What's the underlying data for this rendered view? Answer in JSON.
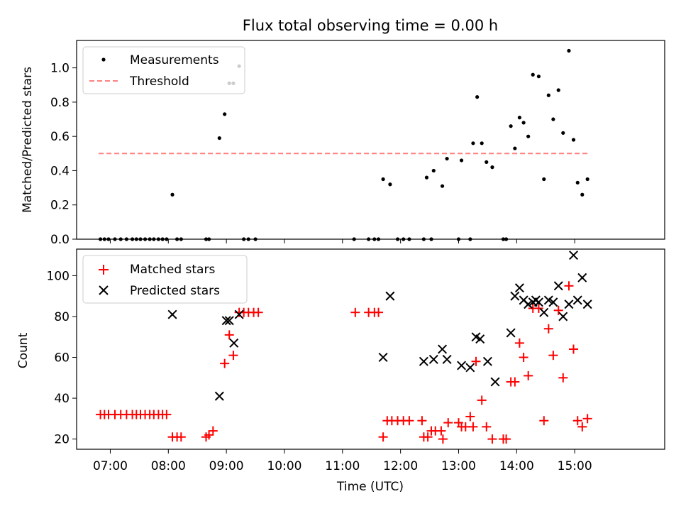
{
  "chart_data": [
    {
      "type": "scatter",
      "title": "Flux total observing time = 0.00 h",
      "xlabel": "",
      "ylabel": "Matched/Predicted stars",
      "xlim": [
        6.42,
        16.55
      ],
      "ylim": [
        0.0,
        1.16
      ],
      "yticks": [
        0.0,
        0.2,
        0.4,
        0.6,
        0.8,
        1.0
      ],
      "ytick_labels": [
        "0.0",
        "0.2",
        "0.4",
        "0.6",
        "0.8",
        "1.0"
      ],
      "xticks": [
        7,
        8,
        9,
        10,
        11,
        12,
        13,
        14,
        15
      ],
      "grid": false,
      "legend_position": "upper-left",
      "legend": [
        {
          "label": "Measurements",
          "marker": "dot",
          "color": "#000000"
        },
        {
          "label": "Threshold",
          "marker": "dashed-line",
          "color": "#ff8080"
        }
      ],
      "threshold": {
        "name": "Threshold",
        "y": 0.5,
        "x_start": 6.8,
        "x_end": 15.25,
        "color": "#ff8080"
      },
      "series": [
        {
          "name": "Measurements",
          "color": "#000000",
          "x": [
            6.83,
            6.9,
            6.97,
            7.08,
            7.18,
            7.28,
            7.38,
            7.45,
            7.52,
            7.6,
            7.68,
            7.75,
            7.83,
            7.9,
            7.97,
            8.07,
            8.15,
            8.22,
            8.65,
            8.7,
            8.88,
            8.97,
            9.05,
            9.12,
            9.22,
            9.3,
            9.38,
            9.5,
            11.2,
            11.45,
            11.55,
            11.62,
            11.7,
            11.82,
            11.95,
            12.05,
            12.15,
            12.4,
            12.45,
            12.53,
            12.57,
            12.72,
            12.8,
            13.0,
            13.05,
            13.2,
            13.25,
            13.32,
            13.4,
            13.48,
            13.58,
            13.77,
            13.82,
            13.9,
            13.97,
            14.05,
            14.12,
            14.2,
            14.28,
            14.38,
            14.47,
            14.55,
            14.63,
            14.72,
            14.8,
            14.9,
            14.98,
            15.05,
            15.13,
            15.22
          ],
          "y": [
            0.0,
            0.0,
            0.0,
            0.0,
            0.0,
            0.0,
            0.0,
            0.0,
            0.0,
            0.0,
            0.0,
            0.0,
            0.0,
            0.0,
            0.0,
            0.26,
            0.0,
            0.0,
            0.0,
            0.0,
            0.59,
            0.73,
            0.91,
            0.91,
            1.01,
            0.0,
            0.0,
            0.0,
            0.0,
            0.0,
            0.0,
            0.0,
            0.35,
            0.32,
            0.0,
            0.0,
            0.0,
            0.0,
            0.36,
            0.0,
            0.4,
            0.31,
            0.47,
            0.0,
            0.46,
            0.0,
            0.56,
            0.83,
            0.56,
            0.45,
            0.42,
            0.0,
            0.0,
            0.66,
            0.53,
            0.71,
            0.68,
            0.6,
            0.96,
            0.95,
            0.35,
            0.84,
            0.7,
            0.87,
            0.62,
            1.1,
            0.58,
            0.33,
            0.26,
            0.35
          ]
        }
      ]
    },
    {
      "type": "scatter",
      "title": "",
      "xlabel": "Time (UTC)",
      "ylabel": "Count",
      "xlim": [
        6.42,
        16.55
      ],
      "ylim": [
        15,
        113
      ],
      "yticks": [
        20,
        40,
        60,
        80,
        100
      ],
      "ytick_labels": [
        "20",
        "40",
        "60",
        "80",
        "100"
      ],
      "xticks": [
        7,
        8,
        9,
        10,
        11,
        12,
        13,
        14,
        15
      ],
      "xtick_labels": [
        "07:00",
        "08:00",
        "09:00",
        "10:00",
        "11:00",
        "12:00",
        "13:00",
        "14:00",
        "15:00"
      ],
      "grid": false,
      "legend_position": "upper-left",
      "legend": [
        {
          "label": "Matched stars",
          "marker": "plus",
          "color": "#ff0000"
        },
        {
          "label": "Predicted stars",
          "marker": "x",
          "color": "#000000"
        }
      ],
      "series": [
        {
          "name": "Matched stars",
          "marker": "plus",
          "color": "#ff0000",
          "x": [
            6.83,
            6.9,
            6.97,
            7.08,
            7.18,
            7.28,
            7.38,
            7.45,
            7.52,
            7.6,
            7.68,
            7.75,
            7.83,
            7.9,
            7.97,
            8.07,
            8.15,
            8.22,
            8.65,
            8.7,
            8.77,
            8.97,
            9.05,
            9.12,
            9.22,
            9.3,
            9.38,
            9.47,
            9.55,
            11.22,
            11.45,
            11.55,
            11.62,
            11.7,
            11.77,
            11.85,
            11.95,
            12.05,
            12.15,
            12.37,
            12.4,
            12.47,
            12.53,
            12.6,
            12.7,
            12.73,
            12.82,
            13.0,
            13.05,
            13.12,
            13.2,
            13.25,
            13.3,
            13.4,
            13.48,
            13.58,
            13.77,
            13.82,
            13.9,
            13.97,
            14.05,
            14.12,
            14.2,
            14.28,
            14.38,
            14.47,
            14.55,
            14.63,
            14.72,
            14.8,
            14.9,
            14.98,
            15.05,
            15.13,
            15.22
          ],
          "y": [
            32,
            32,
            32,
            32,
            32,
            32,
            32,
            32,
            32,
            32,
            32,
            32,
            32,
            32,
            32,
            21,
            21,
            21,
            21,
            22,
            24,
            57,
            71,
            61,
            82,
            82,
            82,
            82,
            82,
            82,
            82,
            82,
            82,
            21,
            29,
            29,
            29,
            29,
            29,
            29,
            21,
            21,
            24,
            24,
            24,
            20,
            28,
            28,
            26,
            26,
            31,
            26,
            58,
            39,
            26,
            20,
            20,
            20,
            48,
            48,
            67,
            60,
            51,
            84,
            84,
            29,
            74,
            61,
            83,
            50,
            95,
            64,
            29,
            26,
            30
          ]
        },
        {
          "name": "Predicted stars",
          "marker": "x",
          "color": "#000000",
          "x": [
            8.07,
            8.88,
            9.0,
            9.05,
            9.13,
            9.22,
            11.7,
            11.82,
            12.4,
            12.57,
            12.72,
            12.8,
            13.05,
            13.2,
            13.3,
            13.37,
            13.5,
            13.63,
            13.9,
            13.97,
            14.05,
            14.12,
            14.2,
            14.28,
            14.33,
            14.38,
            14.47,
            14.55,
            14.63,
            14.72,
            14.8,
            14.9,
            14.98,
            15.05,
            15.13,
            15.22
          ],
          "y": [
            81,
            41,
            78,
            78,
            67,
            81,
            60,
            90,
            58,
            59,
            64,
            59,
            56,
            55,
            70,
            69,
            58,
            48,
            72,
            90,
            94,
            88,
            86,
            87,
            88,
            87,
            82,
            88,
            87,
            95,
            80,
            86,
            110,
            88,
            99,
            86
          ]
        }
      ]
    }
  ]
}
